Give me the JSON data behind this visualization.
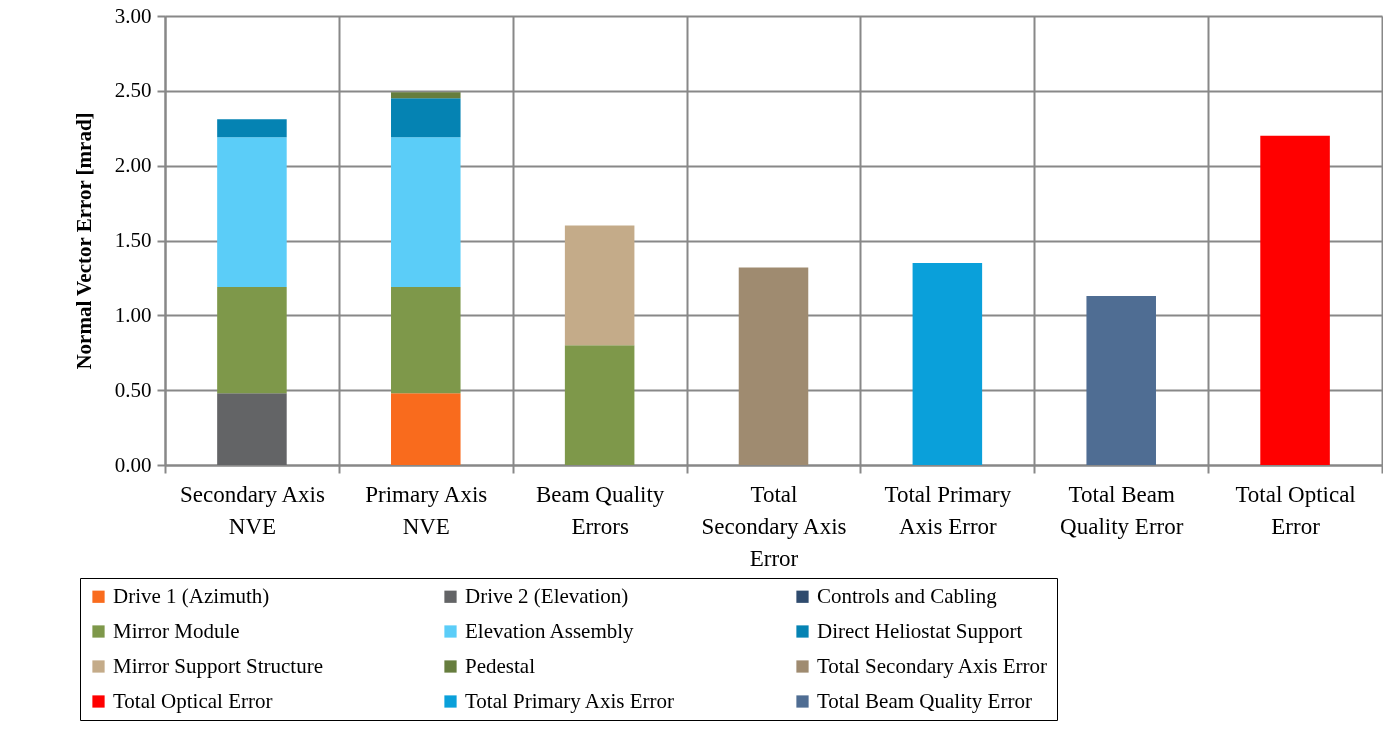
{
  "chart_data": {
    "type": "bar",
    "stacked": true,
    "ylabel": "Normal Vector  Error  [mrad]",
    "categories": [
      "Secondary Axis NVE",
      "Primary Axis NVE",
      "Beam Quality Errors",
      "Total Secondary Axis Error",
      "Total Primary Axis Error",
      "Total Beam Quality Error",
      "Total Optical Error"
    ],
    "series": [
      {
        "name": "Drive 1 (Azimuth)",
        "color": "#f96b1d",
        "values": [
          null,
          0.48,
          null,
          null,
          null,
          null,
          null
        ]
      },
      {
        "name": "Drive 2 (Elevation)",
        "color": "#636466",
        "values": [
          0.48,
          null,
          null,
          null,
          null,
          null,
          null
        ]
      },
      {
        "name": "Controls and Cabling",
        "color": "#2f4b6e",
        "values": [
          null,
          null,
          null,
          null,
          null,
          null,
          null
        ]
      },
      {
        "name": "Mirror Module",
        "color": "#7e984a",
        "values": [
          0.71,
          0.71,
          0.8,
          null,
          null,
          null,
          null
        ]
      },
      {
        "name": "Elevation Assembly",
        "color": "#5bcdf8",
        "values": [
          1.0,
          1.0,
          null,
          null,
          null,
          null,
          null
        ]
      },
      {
        "name": "Direct Heliostat Support",
        "color": "#0583b3",
        "values": [
          0.12,
          0.26,
          null,
          null,
          null,
          null,
          null
        ]
      },
      {
        "name": "Mirror Support Structure",
        "color": "#c4ab89",
        "values": [
          null,
          null,
          0.8,
          null,
          null,
          null,
          null
        ]
      },
      {
        "name": "Pedestal",
        "color": "#667d3e",
        "values": [
          null,
          0.04,
          null,
          null,
          null,
          null,
          null
        ]
      },
      {
        "name": "Total Secondary Axis Error",
        "color": "#9f8b70",
        "values": [
          null,
          null,
          null,
          1.32,
          null,
          null,
          null
        ]
      },
      {
        "name": "Total Optical Error",
        "color": "#ff0000",
        "values": [
          null,
          null,
          null,
          null,
          null,
          null,
          2.2
        ]
      },
      {
        "name": "Total Primary Axis Error",
        "color": "#0aa0da",
        "values": [
          null,
          null,
          null,
          null,
          1.35,
          null,
          null
        ]
      },
      {
        "name": "Total Beam Quality Error",
        "color": "#4f6d93",
        "values": [
          null,
          null,
          null,
          null,
          null,
          1.13,
          null
        ]
      }
    ],
    "ylim": [
      0,
      3
    ],
    "yticks": [
      {
        "value": 0,
        "label": "0.00"
      },
      {
        "value": 0.5,
        "label": "0.50"
      },
      {
        "value": 1,
        "label": "1.00"
      },
      {
        "value": 1.5,
        "label": "1.50"
      },
      {
        "value": 2,
        "label": "2.00"
      },
      {
        "value": 2.5,
        "label": "2.50"
      },
      {
        "value": 3,
        "label": "3.00"
      }
    ],
    "grid": true,
    "legend": "bottom"
  }
}
